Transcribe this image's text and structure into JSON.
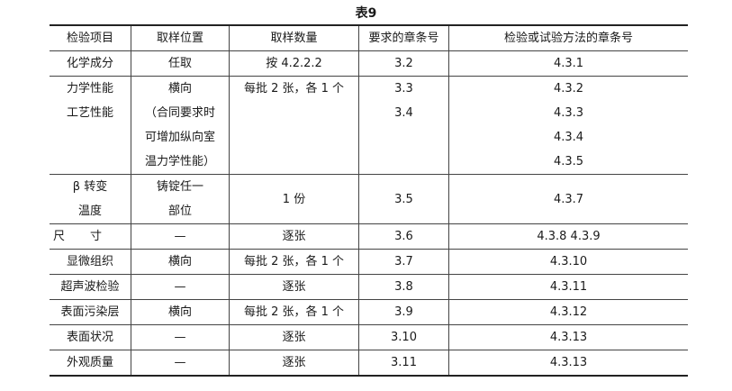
{
  "caption": "表9",
  "headers": [
    "检验项目",
    "取样位置",
    "取样数量",
    "要求的章条号",
    "检验或试验方法的章条号"
  ],
  "rows": [
    {
      "item": [
        "化学成分"
      ],
      "position": [
        "任取"
      ],
      "quantity": "按 4.2.2.2",
      "req": [
        "3.2"
      ],
      "method": [
        "4.3.1"
      ]
    },
    {
      "item": [
        "力学性能",
        "工艺性能"
      ],
      "position": [
        "横向",
        "（合同要求时",
        "可增加纵向室",
        "温力学性能）"
      ],
      "quantity": "每批 2 张，各 1 个",
      "req": [
        "3.3",
        "3.4"
      ],
      "method": [
        "4.3.2",
        "4.3.3",
        "4.3.4",
        "4.3.5"
      ]
    },
    {
      "item": [
        "β 转变",
        "温度"
      ],
      "position": [
        "铸锭任一",
        "部位"
      ],
      "quantity": "1 份",
      "req": [
        "3.5"
      ],
      "method": [
        "4.3.7"
      ]
    },
    {
      "item": [
        "尺寸"
      ],
      "position": [
        "—"
      ],
      "quantity": "逐张",
      "req": [
        "3.6"
      ],
      "method": [
        "4.3.8  4.3.9"
      ]
    },
    {
      "item": [
        "显微组织"
      ],
      "position": [
        "横向"
      ],
      "quantity": "每批 2 张，各 1 个",
      "req": [
        "3.7"
      ],
      "method": [
        "4.3.10"
      ]
    },
    {
      "item": [
        "超声波检验"
      ],
      "position": [
        "—"
      ],
      "quantity": "逐张",
      "req": [
        "3.8"
      ],
      "method": [
        "4.3.11"
      ]
    },
    {
      "item": [
        "表面污染层"
      ],
      "position": [
        "横向"
      ],
      "quantity": "每批 2 张，各 1 个",
      "req": [
        "3.9"
      ],
      "method": [
        "4.3.12"
      ]
    },
    {
      "item": [
        "表面状况"
      ],
      "position": [
        "—"
      ],
      "quantity": "逐张",
      "req": [
        "3.10"
      ],
      "method": [
        "4.3.13"
      ]
    },
    {
      "item": [
        "外观质量"
      ],
      "position": [
        "—"
      ],
      "quantity": "逐张",
      "req": [
        "3.11"
      ],
      "method": [
        "4.3.13"
      ]
    }
  ]
}
